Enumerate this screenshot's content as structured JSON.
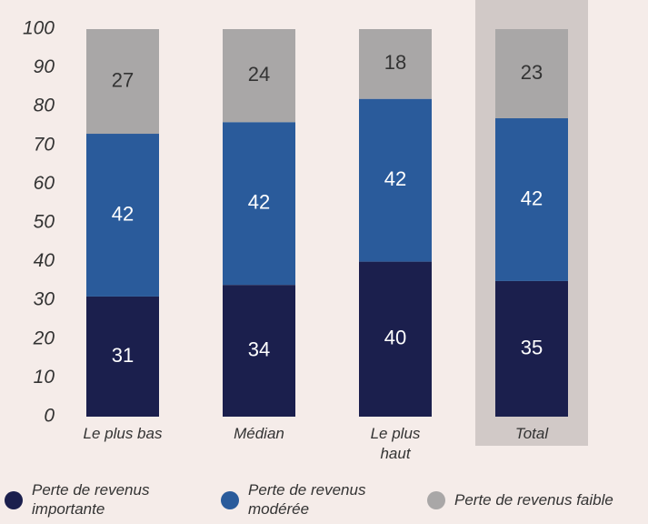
{
  "chart_data": {
    "type": "stacked_bar",
    "categories": [
      "Le plus bas",
      "Médian",
      "Le plus haut",
      "Total"
    ],
    "series": [
      {
        "name": "Perte de revenus importante",
        "color": "#1b1f4d",
        "values": [
          31,
          34,
          40,
          35
        ]
      },
      {
        "name": "Perte de revenus modérée",
        "color": "#2a5b9b",
        "values": [
          42,
          42,
          42,
          42
        ]
      },
      {
        "name": "Perte de revenus faible",
        "color": "#a9a7a7",
        "values": [
          27,
          24,
          18,
          23
        ]
      }
    ],
    "ylim": [
      0,
      100
    ],
    "yticks": [
      0,
      10,
      20,
      30,
      40,
      50,
      60,
      70,
      80,
      90,
      100
    ],
    "highlight_index": 3,
    "highlight_color": "#d1c9c7",
    "legend": "bottom"
  }
}
